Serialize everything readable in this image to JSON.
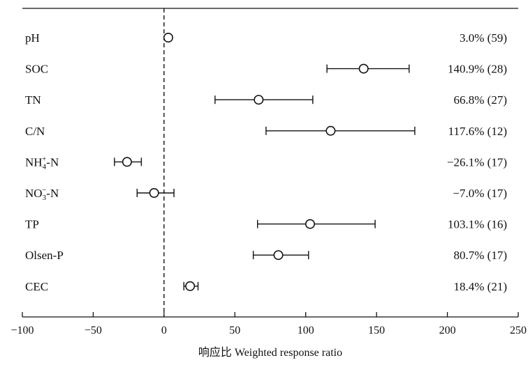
{
  "chart_data": {
    "type": "forest",
    "xlabel": "响应比 Weighted response ratio",
    "xlim": [
      -100,
      250
    ],
    "xticks": [
      -100,
      -50,
      0,
      50,
      100,
      150,
      200,
      250
    ],
    "reference_line": 0,
    "grid": false,
    "rows": [
      {
        "label": "pH",
        "value": 3.0,
        "ci_low": null,
        "ci_high": null,
        "annotation": "3.0% (59)"
      },
      {
        "label": "SOC",
        "value": 140.9,
        "ci_low": 115,
        "ci_high": 173,
        "annotation": "140.9% (28)"
      },
      {
        "label": "TN",
        "value": 66.8,
        "ci_low": 36,
        "ci_high": 105,
        "annotation": "66.8% (27)"
      },
      {
        "label": "C/N",
        "value": 117.6,
        "ci_low": 72,
        "ci_high": 177,
        "annotation": "117.6% (12)"
      },
      {
        "label": "NH4+-N",
        "value": -26.1,
        "ci_low": -35,
        "ci_high": -16,
        "annotation": "−26.1% (17)"
      },
      {
        "label": "NO3−-N",
        "value": -7.0,
        "ci_low": -19,
        "ci_high": 7,
        "annotation": "−7.0% (17)"
      },
      {
        "label": "TP",
        "value": 103.1,
        "ci_low": 66,
        "ci_high": 149,
        "annotation": "103.1% (16)"
      },
      {
        "label": "Olsen-P",
        "value": 80.7,
        "ci_low": 63,
        "ci_high": 102,
        "annotation": "80.7% (17)"
      },
      {
        "label": "CEC",
        "value": 18.4,
        "ci_low": 14,
        "ci_high": 24,
        "annotation": "18.4% (21)"
      }
    ]
  }
}
